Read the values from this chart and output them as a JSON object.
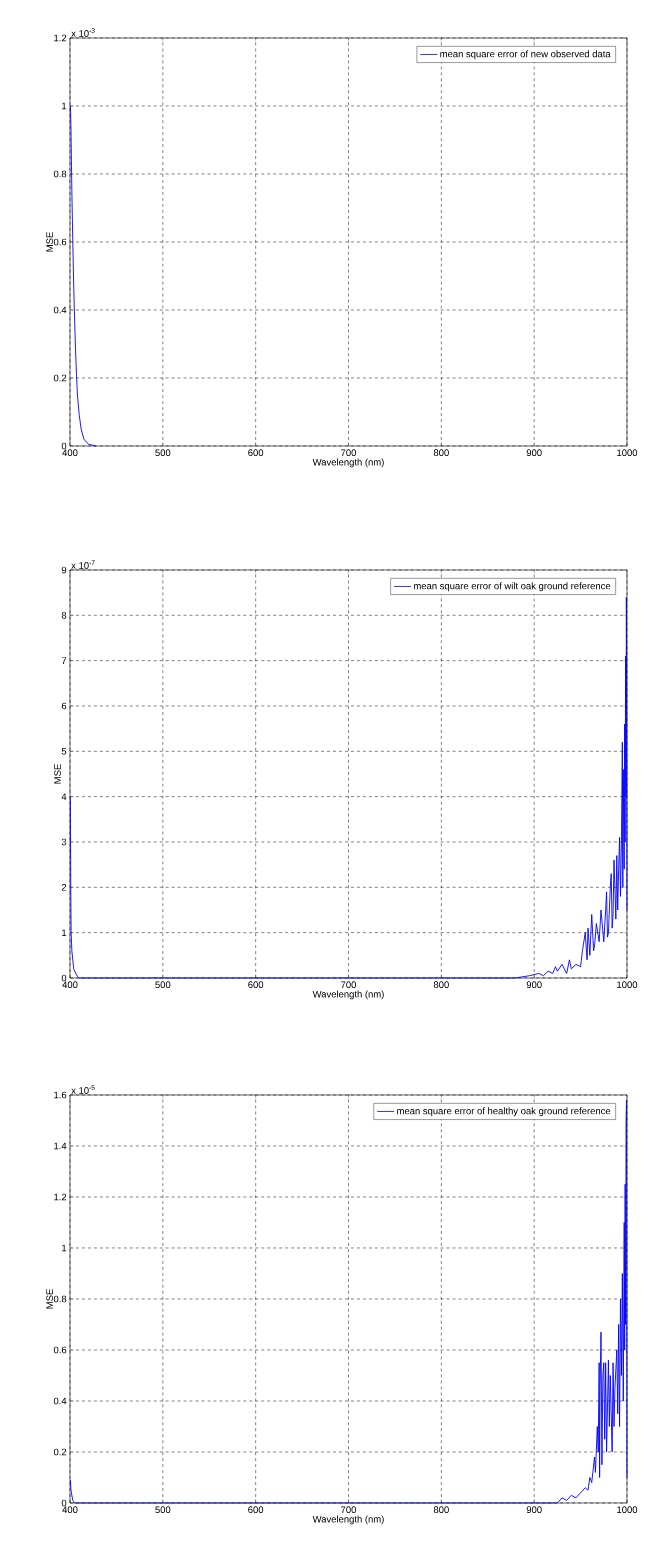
{
  "chart_data": [
    {
      "type": "line",
      "xlabel": "Wavelength (nm)",
      "ylabel": "MSE",
      "annotations": [
        "x 10$^{-3}$"
      ],
      "xlim": [
        400,
        1000
      ],
      "ylim": [
        0,
        1.2
      ],
      "xticks": [
        400,
        500,
        600,
        700,
        800,
        900,
        1000
      ],
      "yticks": [
        0,
        0.2,
        0.4,
        0.6,
        0.8,
        1,
        1.2
      ],
      "grid": true,
      "legend": "top right",
      "line_style": "solid",
      "series": [
        {
          "name": "mean square error of new observed data",
          "color": "#0000ff",
          "x": [
            400.5,
            401,
            402,
            403,
            404,
            405,
            406,
            407,
            408,
            410,
            412,
            415,
            420,
            428
          ],
          "values": [
            1.0,
            0.94,
            0.75,
            0.6,
            0.47,
            0.37,
            0.28,
            0.21,
            0.15,
            0.09,
            0.05,
            0.02,
            0.005,
            0
          ]
        }
      ]
    },
    {
      "type": "line",
      "xlabel": "Wavelength (nm)",
      "ylabel": "MSE",
      "annotations": [
        "x 10$^{-7}$"
      ],
      "xlim": [
        400,
        1000
      ],
      "ylim": [
        0,
        9
      ],
      "xticks": [
        400,
        500,
        600,
        700,
        800,
        900,
        1000
      ],
      "yticks": [
        0,
        1,
        2,
        3,
        4,
        5,
        6,
        7,
        8,
        9
      ],
      "grid": true,
      "legend": "top right",
      "line_style": "solid",
      "series": [
        {
          "name": "mean square error of wilt oak ground reference",
          "color": "#0000ff",
          "x": [
            400.4,
            400.8,
            401.2,
            402,
            404,
            408,
            410,
            880,
            895,
            905,
            910,
            915,
            920,
            923,
            925,
            930,
            935,
            938,
            940,
            945,
            950,
            952,
            955,
            957,
            958,
            960,
            962,
            964,
            965,
            967,
            970,
            972,
            975,
            977,
            978,
            979,
            980,
            982,
            983,
            984,
            985,
            986,
            988,
            989,
            990,
            991,
            992,
            993,
            994,
            995,
            995.5,
            996,
            997,
            997.5,
            998,
            998.5,
            999,
            999.3,
            999.6,
            1000
          ],
          "values": [
            4,
            2.1,
            1,
            0.6,
            0.2,
            0.03,
            0,
            0,
            0.05,
            0.1,
            0.05,
            0.15,
            0.1,
            0.25,
            0.15,
            0.3,
            0.1,
            0.4,
            0.2,
            0.3,
            0.25,
            0.6,
            1.0,
            0.4,
            1.1,
            0.5,
            1.4,
            0.6,
            0.7,
            1.2,
            0.8,
            1.5,
            0.8,
            1.5,
            1.9,
            0.9,
            1.0,
            2.0,
            2.3,
            1.1,
            1.4,
            2.6,
            1.3,
            2.7,
            1.5,
            2.4,
            3.1,
            1.8,
            3.0,
            5.2,
            2.0,
            4.6,
            2.4,
            5.6,
            3.0,
            7.1,
            4.0,
            8.4,
            7.0,
            1.5
          ]
        }
      ]
    },
    {
      "type": "line",
      "xlabel": "Wavelength (nm)",
      "ylabel": "MSE",
      "annotations": [
        "x 10$^{-5}$"
      ],
      "xlim": [
        400,
        1000
      ],
      "ylim": [
        0,
        1.6
      ],
      "xticks": [
        400,
        500,
        600,
        700,
        800,
        900,
        1000
      ],
      "yticks": [
        0,
        0.2,
        0.4,
        0.6,
        0.8,
        1,
        1.2,
        1.4,
        1.6
      ],
      "grid": true,
      "legend": "top right",
      "line_style": "solid",
      "series": [
        {
          "name": "mean square error of healthy oak ground reference",
          "color": "#0000ff",
          "x": [
            400.5,
            401,
            403,
            405,
            925,
            930,
            935,
            940,
            945,
            950,
            955,
            958,
            960,
            962,
            965,
            966,
            968,
            969,
            970,
            970.5,
            971,
            972,
            973,
            974,
            975,
            976,
            977,
            978,
            980,
            981,
            982,
            984,
            985,
            986,
            987,
            989,
            990,
            991,
            992,
            993,
            994,
            995,
            996,
            997,
            997.5,
            998,
            998.5,
            999,
            999.5,
            1000
          ],
          "values": [
            0.09,
            0.05,
            0.01,
            0,
            0,
            0.02,
            0.01,
            0.03,
            0.02,
            0.04,
            0.06,
            0.05,
            0.1,
            0.08,
            0.18,
            0.12,
            0.3,
            0.2,
            0.55,
            0.1,
            0.45,
            0.67,
            0.15,
            0.5,
            0.55,
            0.25,
            0.55,
            0.2,
            0.56,
            0.3,
            0.5,
            0.2,
            0.55,
            0.3,
            0.45,
            0.6,
            0.35,
            0.7,
            0.3,
            0.8,
            0.5,
            0.9,
            0.4,
            1.1,
            0.6,
            1.25,
            0.7,
            1.5,
            1.58,
            0.1
          ]
        }
      ]
    }
  ]
}
